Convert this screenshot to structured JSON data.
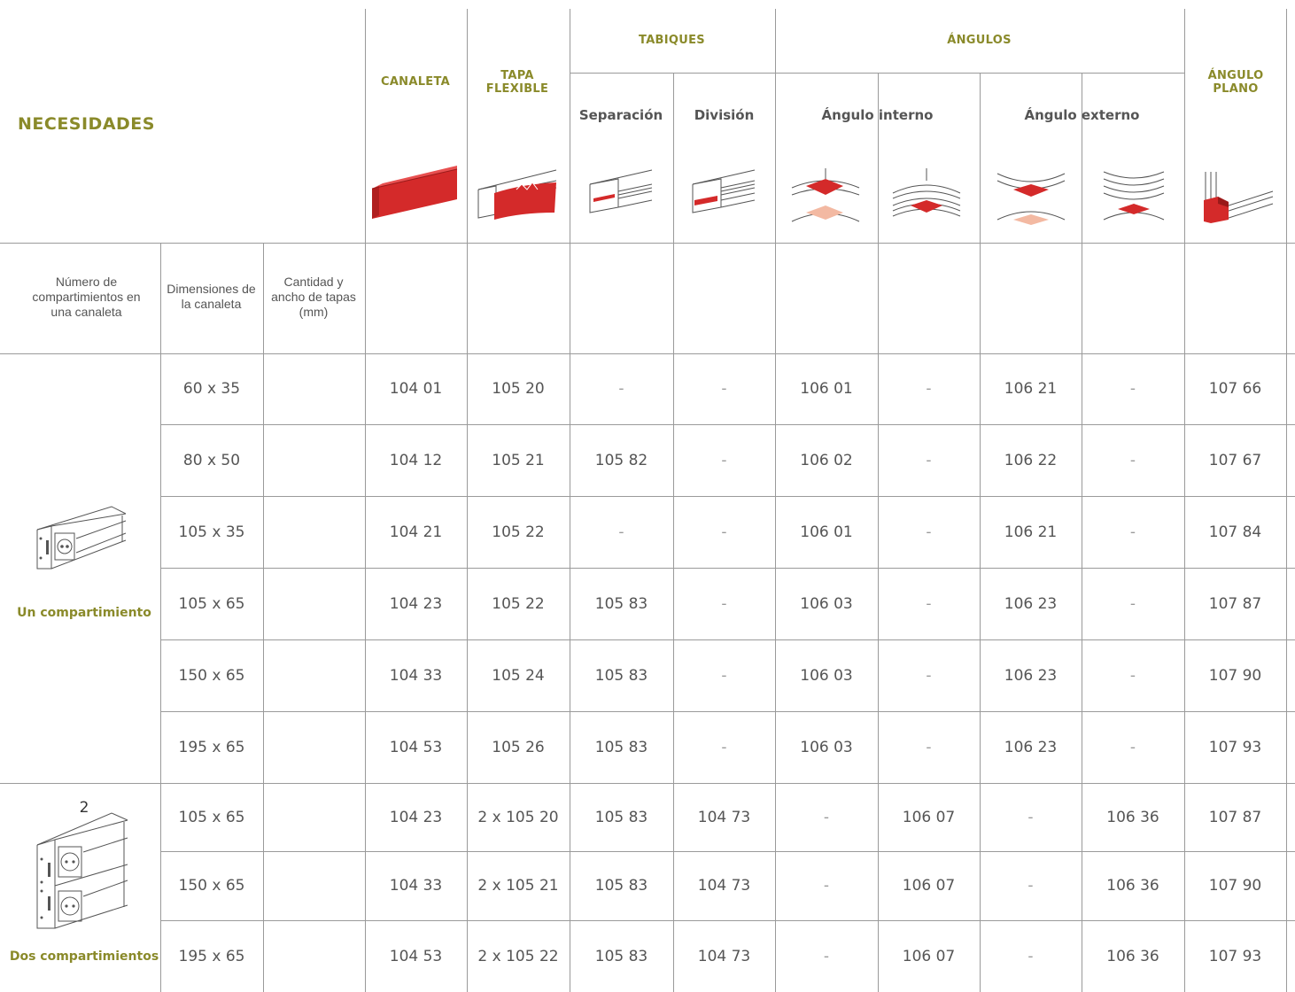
{
  "header": {
    "title": "NECESIDADES",
    "canaleta": "CANALETA",
    "tapa_flexible": "TAPA FLEXIBLE",
    "tabiques": "TABIQUES",
    "angulos": "ÁNGULOS",
    "angulo_plano": "ÁNGULO PLANO",
    "separacion": "Separación",
    "division": "División",
    "angulo_interno": "Ángulo interno",
    "angulo_externo": "Ángulo externo"
  },
  "columns": {
    "num_compartimientos": "Número de compartimientos en una canaleta",
    "dimensiones": "Dimensiones de la canaleta",
    "cantidad": "Cantidad y ancho de tapas (mm)"
  },
  "groups": {
    "uno": "Un compartimiento",
    "dos": "Dos compartimientos",
    "dos_num": "2"
  },
  "rows": [
    {
      "dim": "60 x 35",
      "canaleta": "104 01",
      "tapa": "105 20",
      "sep": "-",
      "div": "-",
      "int1": "106 01",
      "int2": "-",
      "ext1": "106 21",
      "ext2": "-",
      "plano": "107 66"
    },
    {
      "dim": "80 x 50",
      "canaleta": "104 12",
      "tapa": "105 21",
      "sep": "105 82",
      "div": "-",
      "int1": "106 02",
      "int2": "-",
      "ext1": "106 22",
      "ext2": "-",
      "plano": "107 67"
    },
    {
      "dim": "105 x 35",
      "canaleta": "104 21",
      "tapa": "105 22",
      "sep": "-",
      "div": "-",
      "int1": "106 01",
      "int2": "-",
      "ext1": "106 21",
      "ext2": "-",
      "plano": "107 84"
    },
    {
      "dim": "105 x 65",
      "canaleta": "104 23",
      "tapa": "105 22",
      "sep": "105 83",
      "div": "-",
      "int1": "106 03",
      "int2": "-",
      "ext1": "106 23",
      "ext2": "-",
      "plano": "107 87"
    },
    {
      "dim": "150 x 65",
      "canaleta": "104 33",
      "tapa": "105 24",
      "sep": "105 83",
      "div": "-",
      "int1": "106 03",
      "int2": "-",
      "ext1": "106 23",
      "ext2": "-",
      "plano": "107 90"
    },
    {
      "dim": "195 x 65",
      "canaleta": "104 53",
      "tapa": "105 26",
      "sep": "105 83",
      "div": "-",
      "int1": "106 03",
      "int2": "-",
      "ext1": "106 23",
      "ext2": "-",
      "plano": "107 93"
    },
    {
      "dim": "105 x 65",
      "canaleta": "104 23",
      "tapa": "2 x 105 20",
      "sep": "105 83",
      "div": "104 73",
      "int1": "-",
      "int2": "106 07",
      "ext1": "-",
      "ext2": "106 36",
      "plano": "107 87"
    },
    {
      "dim": "150 x 65",
      "canaleta": "104 33",
      "tapa": "2 x 105 21",
      "sep": "105 83",
      "div": "104 73",
      "int1": "-",
      "int2": "106 07",
      "ext1": "-",
      "ext2": "106 36",
      "plano": "107 90"
    },
    {
      "dim": "195 x 65",
      "canaleta": "104 53",
      "tapa": "2 x 105 22",
      "sep": "105 83",
      "div": "104 73",
      "int1": "-",
      "int2": "106 07",
      "ext1": "-",
      "ext2": "106 36",
      "plano": "107 93"
    }
  ],
  "colors": {
    "accent": "#8a8a2a",
    "red": "#d42a2a",
    "salmon": "#f3b9a2",
    "line": "#9a9a9a"
  },
  "icons": [
    "canaleta-icon",
    "tapa-flexible-icon",
    "separacion-icon",
    "division-icon",
    "angulo-interno-icon",
    "angulo-interno-2-icon",
    "angulo-externo-icon",
    "angulo-externo-2-icon",
    "angulo-plano-icon",
    "canaleta-un-compartimiento-icon",
    "canaleta-dos-compartimientos-icon"
  ]
}
